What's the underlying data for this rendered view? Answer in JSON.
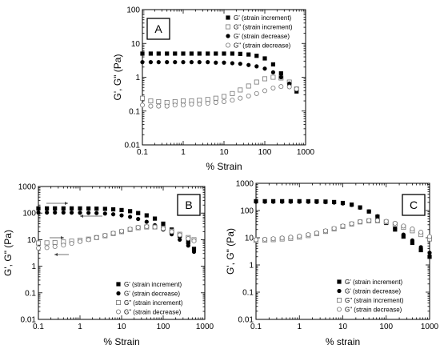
{
  "chart_data": [
    {
      "type": "scatter",
      "panel_label": "A",
      "xlabel": "% Strain",
      "ylabel": "G', G\" (Pa)",
      "xscale": "log",
      "yscale": "log",
      "xlim": [
        0.1,
        1000
      ],
      "ylim": [
        0.01,
        100
      ],
      "x_ticks": [
        "0.1",
        "1",
        "10",
        "100",
        "1000"
      ],
      "y_ticks": [
        "0.01",
        "0.1",
        "1",
        "10",
        "100"
      ],
      "legend_position": "top-right",
      "series": [
        {
          "name": "G' (strain increment)",
          "marker": "filled-square",
          "x": [
            0.1,
            0.16,
            0.25,
            0.4,
            0.63,
            1,
            1.6,
            2.5,
            4,
            6.3,
            10,
            16,
            25,
            40,
            63,
            100,
            160,
            250,
            400,
            600
          ],
          "y": [
            5,
            5,
            5,
            5,
            5,
            5,
            5,
            5,
            5,
            5,
            5,
            5,
            4.9,
            4.7,
            4.3,
            3.6,
            2.4,
            1.3,
            0.65,
            0.38
          ]
        },
        {
          "name": "G\" (strain increment)",
          "marker": "open-square",
          "x": [
            0.1,
            0.16,
            0.25,
            0.4,
            0.63,
            1,
            1.6,
            2.5,
            4,
            6.3,
            10,
            16,
            25,
            40,
            63,
            100,
            160,
            250,
            400,
            600
          ],
          "y": [
            0.24,
            0.2,
            0.19,
            0.18,
            0.19,
            0.2,
            0.2,
            0.21,
            0.22,
            0.24,
            0.27,
            0.33,
            0.42,
            0.55,
            0.72,
            0.9,
            1.0,
            0.95,
            0.72,
            0.45
          ]
        },
        {
          "name": "G' (strain decrease)",
          "marker": "filled-circle",
          "x": [
            0.1,
            0.16,
            0.25,
            0.4,
            0.63,
            1,
            1.6,
            2.5,
            4,
            6.3,
            10,
            16,
            25,
            40,
            63,
            100,
            160,
            250,
            400,
            600
          ],
          "y": [
            2.8,
            2.8,
            2.8,
            2.8,
            2.8,
            2.8,
            2.8,
            2.8,
            2.8,
            2.7,
            2.7,
            2.6,
            2.5,
            2.3,
            2.1,
            1.8,
            1.4,
            1.0,
            0.65,
            0.42
          ]
        },
        {
          "name": "G\" (strain decrease)",
          "marker": "open-circle",
          "x": [
            0.1,
            0.16,
            0.25,
            0.4,
            0.63,
            1,
            1.6,
            2.5,
            4,
            6.3,
            10,
            16,
            25,
            40,
            63,
            100,
            160,
            250,
            400,
            600
          ],
          "y": [
            0.15,
            0.14,
            0.14,
            0.14,
            0.15,
            0.15,
            0.16,
            0.16,
            0.17,
            0.18,
            0.19,
            0.21,
            0.24,
            0.28,
            0.33,
            0.4,
            0.48,
            0.53,
            0.52,
            0.45
          ]
        }
      ]
    },
    {
      "type": "scatter",
      "panel_label": "B",
      "xlabel": "% Strain",
      "ylabel": "G', G\" (Pa)",
      "xscale": "log",
      "yscale": "log",
      "xlim": [
        0.1,
        1000
      ],
      "ylim": [
        0.01,
        1000
      ],
      "x_ticks": [
        "0.1",
        "1",
        "10",
        "100",
        "1000"
      ],
      "y_ticks": [
        "0.01",
        "0.1",
        "1",
        "10",
        "100",
        "1000"
      ],
      "legend_position": "bottom-right",
      "series": [
        {
          "name": "G' (strain increment)",
          "marker": "filled-square",
          "x": [
            0.1,
            0.16,
            0.25,
            0.4,
            0.63,
            1,
            1.6,
            2.5,
            4,
            6.3,
            10,
            16,
            25,
            40,
            63,
            100,
            160,
            250,
            400,
            550
          ],
          "y": [
            150,
            150,
            150,
            150,
            150,
            150,
            149,
            147,
            144,
            138,
            130,
            118,
            100,
            82,
            62,
            40,
            24,
            14,
            8,
            4.5
          ]
        },
        {
          "name": "G' (strain decrease)",
          "marker": "filled-circle",
          "x": [
            0.1,
            0.16,
            0.25,
            0.4,
            0.63,
            1,
            1.6,
            2.5,
            4,
            6.3,
            10,
            16,
            25,
            40,
            63,
            100,
            160,
            250,
            400,
            550
          ],
          "y": [
            105,
            105,
            105,
            105,
            104,
            103,
            102,
            100,
            96,
            90,
            82,
            72,
            60,
            47,
            35,
            24,
            16,
            10,
            6,
            3.5
          ]
        },
        {
          "name": "G\" (strain increment)",
          "marker": "open-square",
          "x": [
            0.1,
            0.16,
            0.25,
            0.4,
            0.63,
            1,
            1.6,
            2.5,
            4,
            6.3,
            10,
            16,
            25,
            40,
            63,
            100,
            160,
            250,
            400,
            550
          ],
          "y": [
            7.5,
            7.6,
            7.8,
            8.2,
            8.8,
            9.5,
            10.5,
            12,
            14,
            17,
            20,
            24,
            28,
            30,
            30,
            27,
            21,
            16,
            12,
            10
          ]
        },
        {
          "name": "G\" (strain decrease)",
          "marker": "open-circle",
          "x": [
            0.1,
            0.16,
            0.25,
            0.4,
            0.63,
            1,
            1.6,
            2.5,
            4,
            6.3,
            10,
            16,
            25,
            40,
            63,
            100,
            160,
            250,
            400,
            550
          ],
          "y": [
            4.8,
            5,
            5.5,
            6.2,
            7.2,
            8.5,
            10,
            12,
            14.5,
            17.5,
            21,
            25,
            29,
            31,
            30,
            26,
            20,
            15,
            11,
            9
          ]
        }
      ]
    },
    {
      "type": "scatter",
      "panel_label": "C",
      "xlabel": "% strain",
      "ylabel": "G', G\" (Pa)",
      "xscale": "log",
      "yscale": "log",
      "xlim": [
        0.1,
        1000
      ],
      "ylim": [
        0.01,
        1000
      ],
      "x_ticks": [
        "0.1",
        "1",
        "10",
        "100",
        "1000"
      ],
      "y_ticks": [
        "0.01",
        "0.1",
        "1",
        "10",
        "100",
        "1000"
      ],
      "legend_position": "bottom-right",
      "series": [
        {
          "name": "G' (strain increment)",
          "marker": "filled-square",
          "x": [
            0.1,
            0.16,
            0.25,
            0.4,
            0.63,
            1,
            1.6,
            2.5,
            4,
            6.3,
            10,
            16,
            25,
            40,
            63,
            100,
            160,
            250,
            400,
            630,
            1000
          ],
          "y": [
            220,
            220,
            220,
            220,
            220,
            220,
            219,
            217,
            213,
            205,
            190,
            165,
            130,
            92,
            60,
            35,
            20,
            11,
            6.5,
            3.5,
            2
          ]
        },
        {
          "name": "G' (strain decrease)",
          "marker": "filled-circle",
          "x": [
            0.1,
            0.16,
            0.25,
            0.4,
            0.63,
            1,
            1.6,
            2.5,
            4,
            6.3,
            10,
            16,
            25,
            40,
            63,
            100,
            160,
            250,
            400,
            630,
            1000
          ],
          "y": [
            210,
            210,
            210,
            210,
            210,
            210,
            209,
            207,
            203,
            196,
            182,
            160,
            128,
            93,
            62,
            38,
            23,
            13,
            8,
            4.5,
            2.8
          ]
        },
        {
          "name": "G\" (strain increment)",
          "marker": "open-square",
          "x": [
            0.1,
            0.16,
            0.25,
            0.4,
            0.63,
            1,
            1.6,
            2.5,
            4,
            6.3,
            10,
            16,
            25,
            40,
            63,
            100,
            160,
            250,
            400,
            630,
            1000
          ],
          "y": [
            8,
            8.2,
            8.5,
            9,
            9.5,
            10.5,
            12,
            14,
            17,
            21,
            26,
            32,
            38,
            42,
            42,
            38,
            31,
            24,
            18,
            13,
            9
          ]
        },
        {
          "name": "G\" (strain decrease)",
          "marker": "open-circle",
          "x": [
            0.1,
            0.16,
            0.25,
            0.4,
            0.63,
            1,
            1.6,
            2.5,
            4,
            6.3,
            10,
            16,
            25,
            40,
            63,
            100,
            160,
            250,
            400,
            630,
            1000
          ],
          "y": [
            8.5,
            8.8,
            9.2,
            9.8,
            10.5,
            11.5,
            13,
            15,
            18,
            22,
            27,
            33,
            39,
            43,
            43,
            40,
            34,
            27,
            21,
            16,
            11
          ]
        }
      ]
    }
  ]
}
